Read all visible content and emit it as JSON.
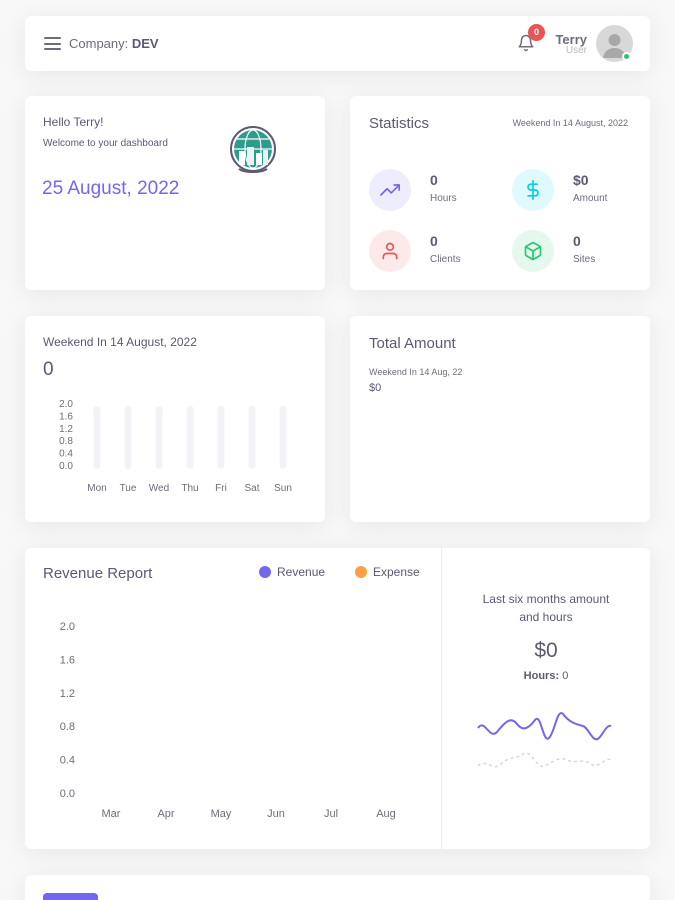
{
  "navbar": {
    "company_label": "Company:",
    "company_name": "DEV",
    "notification_count": "0",
    "user_name": "Terry",
    "user_role": "User"
  },
  "welcome": {
    "greeting": "Hello Terry!",
    "subtitle": "Welcome to your dashboard",
    "date": "25 August, 2022"
  },
  "statistics": {
    "title": "Statistics",
    "date_range": "Weekend In 14 August, 2022",
    "items": [
      {
        "value": "0",
        "label": "Hours",
        "icon": "trending-up-icon",
        "color": "#7367f0",
        "bg": "#eeedfd"
      },
      {
        "value": "$0",
        "label": "Amount",
        "icon": "dollar-icon",
        "color": "#00cfe8",
        "bg": "#e0f9fc"
      },
      {
        "value": "0",
        "label": "Clients",
        "icon": "user-icon",
        "color": "#ea5455",
        "bg": "#fceaea"
      },
      {
        "value": "0",
        "label": "Sites",
        "icon": "box-icon",
        "color": "#28c76f",
        "bg": "#e5f8ed"
      }
    ]
  },
  "weekend_card": {
    "title": "Weekend In 14 August, 2022",
    "value": "0",
    "chart_data": {
      "type": "bar",
      "categories": [
        "Mon",
        "Tue",
        "Wed",
        "Thu",
        "Fri",
        "Sat",
        "Sun"
      ],
      "values": [
        0,
        0,
        0,
        0,
        0,
        0,
        0
      ],
      "yticks": [
        "2.0",
        "1.6",
        "1.2",
        "0.8",
        "0.4",
        "0.0"
      ],
      "ylim": [
        0,
        2
      ]
    }
  },
  "total_amount": {
    "title": "Total Amount",
    "subtitle": "Weekend In 14 Aug, 22",
    "value": "$0"
  },
  "revenue_report": {
    "title": "Revenue Report",
    "legend": [
      {
        "name": "Revenue",
        "color": "#7367f0"
      },
      {
        "name": "Expense",
        "color": "#ff9f43"
      }
    ],
    "chart_data": {
      "type": "bar",
      "categories": [
        "Mar",
        "Apr",
        "May",
        "Jun",
        "Jul",
        "Aug"
      ],
      "series": [
        {
          "name": "Revenue",
          "values": [
            0,
            0,
            0,
            0,
            0,
            0
          ]
        },
        {
          "name": "Expense",
          "values": [
            0,
            0,
            0,
            0,
            0,
            0
          ]
        }
      ],
      "yticks": [
        "2.0",
        "1.6",
        "1.2",
        "0.8",
        "0.4",
        "0.0"
      ],
      "ylim": [
        0,
        2
      ]
    },
    "summary_title_line1": "Last six months amount",
    "summary_title_line2": "and hours",
    "summary_value": "$0",
    "hours_label": "Hours:",
    "hours_value": "0"
  }
}
